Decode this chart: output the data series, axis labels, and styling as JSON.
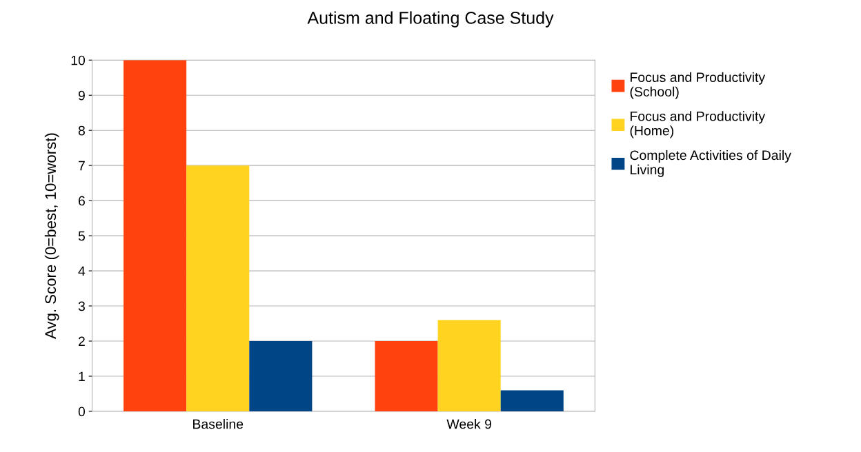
{
  "chart_data": {
    "type": "bar",
    "title": "Autism and Floating Case Study",
    "ylabel": "Avg. Score (0=best, 10=worst)",
    "categories": [
      "Baseline",
      "Week 9"
    ],
    "series": [
      {
        "name": "Focus and Productivity\n(School)",
        "color": "#ff420e",
        "values": [
          10,
          2
        ]
      },
      {
        "name": "Focus and Productivity\n(Home)",
        "color": "#ffd320",
        "values": [
          7,
          2.6
        ]
      },
      {
        "name": "Complete Activities of Daily\nLiving",
        "color": "#004586",
        "values": [
          2,
          0.6
        ]
      }
    ],
    "ylim": [
      0,
      10
    ],
    "yticks": [
      0,
      1,
      2,
      3,
      4,
      5,
      6,
      7,
      8,
      9,
      10
    ],
    "grid": "y",
    "legend": "right"
  }
}
